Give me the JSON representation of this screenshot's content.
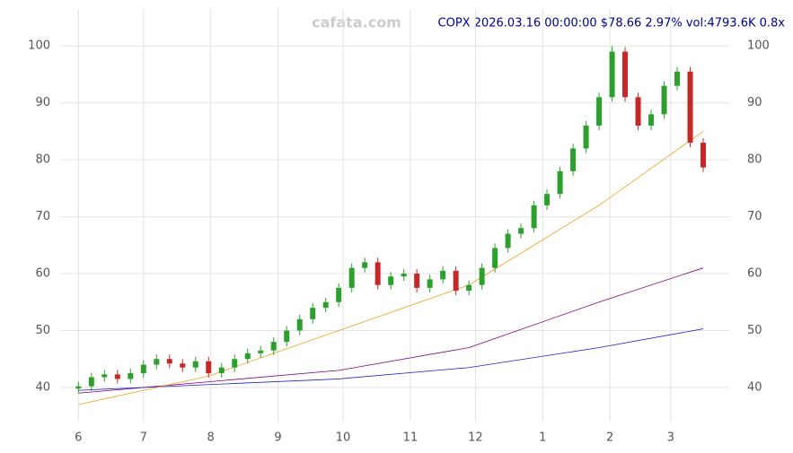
{
  "chart_data": {
    "type": "candlestick",
    "title": "COPX 2026.03.16 00:00:00 $78.66 2.97% vol:4793.6K 0.8x",
    "watermark": "cafata.com",
    "x": [
      1,
      7,
      13,
      19,
      25,
      31,
      37,
      43,
      49,
      55,
      61,
      67,
      73,
      79,
      85,
      91,
      97,
      103,
      109,
      115,
      121,
      127,
      133,
      139,
      145,
      151,
      157,
      163,
      169,
      175,
      181,
      187,
      193,
      199,
      205,
      211,
      217,
      223,
      229,
      235,
      241,
      247,
      253,
      259,
      265,
      271,
      277,
      283,
      289
    ],
    "open": [
      39.8,
      40.2,
      41.8,
      42.3,
      41.5,
      42.5,
      44,
      45,
      44.2,
      43.5,
      44.6,
      42.5,
      43.5,
      45,
      46,
      46.5,
      48,
      50,
      52,
      54,
      55,
      57.5,
      61,
      62,
      58,
      59.5,
      60,
      57.5,
      59,
      60.5,
      57,
      58,
      61,
      64.5,
      67,
      68,
      72,
      74,
      78,
      82,
      86,
      91,
      99,
      91,
      86,
      88,
      93,
      95.5,
      83
    ],
    "high": [
      41.0,
      42.6,
      43.1,
      43.1,
      43.3,
      44.8,
      45.8,
      45.8,
      45.0,
      45.4,
      45.4,
      44.3,
      45.8,
      46.8,
      47.3,
      48.8,
      50.8,
      52.8,
      54.8,
      55.8,
      58.3,
      61.8,
      62.8,
      62.8,
      60.3,
      60.8,
      60.8,
      59.8,
      61.3,
      61.3,
      58.8,
      61.8,
      65.3,
      67.8,
      68.8,
      72.8,
      74.8,
      78.8,
      82.8,
      86.8,
      91.8,
      100,
      99.8,
      91.8,
      88.8,
      93.8,
      96.3,
      96.3,
      83.8
    ],
    "low": [
      39.0,
      39.4,
      41.0,
      40.7,
      40.7,
      41.7,
      43.2,
      43.4,
      42.7,
      42.7,
      41.7,
      41.7,
      42.7,
      44.2,
      45.2,
      45.7,
      47.2,
      49.2,
      51.2,
      53.2,
      54.2,
      56.7,
      60.2,
      57.2,
      57.2,
      58.7,
      56.7,
      56.7,
      58.2,
      56.2,
      56.2,
      57.2,
      60.2,
      63.7,
      66.2,
      67.2,
      71.2,
      73.2,
      77.2,
      81.2,
      85.2,
      90.2,
      90.2,
      85.2,
      85.2,
      87.2,
      92.2,
      82.2,
      77.86
    ],
    "close": [
      40.2,
      41.8,
      42.3,
      41.5,
      42.5,
      44,
      45,
      44.2,
      43.5,
      44.6,
      42.5,
      43.5,
      45,
      46,
      46.5,
      48,
      50,
      52,
      54,
      55,
      57.5,
      61,
      62,
      58,
      59.5,
      60,
      57.5,
      59,
      60.5,
      57,
      58,
      61,
      64.5,
      67,
      68,
      72,
      74,
      78,
      82,
      86,
      91,
      99,
      91,
      86,
      88,
      93,
      95.5,
      83,
      78.66
    ],
    "up_color": "#2ca02c",
    "down_color": "#c62828",
    "lines": [
      {
        "color": "#800080",
        "x": [
          1,
          61,
          121,
          181,
          241,
          289
        ],
        "values": [
          39,
          41,
          43,
          47,
          55,
          61
        ]
      },
      {
        "color": "#2222cc",
        "x": [
          1,
          61,
          121,
          181,
          241,
          289
        ],
        "values": [
          39.5,
          40.5,
          41.5,
          43.5,
          47,
          50.3
        ]
      },
      {
        "color": "#f0a020",
        "x": [
          1,
          61,
          121,
          181,
          241,
          289
        ],
        "values": [
          37,
          42,
          50,
          58,
          72,
          85
        ]
      }
    ],
    "xlim": [
      -7,
      301
    ],
    "xticks": [
      {
        "value": 1,
        "label": "6"
      },
      {
        "value": 31,
        "label": "7"
      },
      {
        "value": 62,
        "label": "8"
      },
      {
        "value": 93,
        "label": "9"
      },
      {
        "value": 123,
        "label": "10"
      },
      {
        "value": 154,
        "label": "11"
      },
      {
        "value": 184,
        "label": "12"
      },
      {
        "value": 215,
        "label": "1"
      },
      {
        "value": 246,
        "label": "2"
      },
      {
        "value": 274,
        "label": "3"
      }
    ],
    "ylim": [
      34,
      106.5
    ],
    "yticks": [
      40,
      50,
      60,
      70,
      80,
      90,
      100
    ],
    "grid": true
  }
}
